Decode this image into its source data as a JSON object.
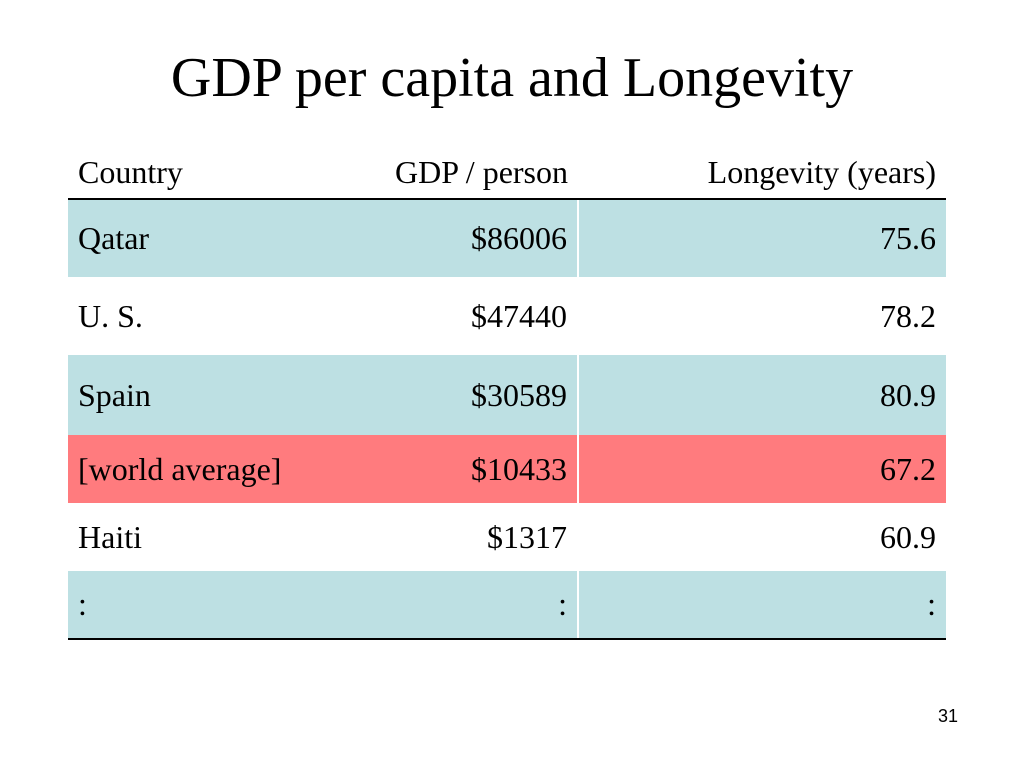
{
  "slide": {
    "title": "GDP per capita and Longevity",
    "page_number": "31"
  },
  "table": {
    "headers": [
      "Country",
      "GDP / person",
      "Longevity (years)"
    ],
    "rows": [
      {
        "country": "Qatar",
        "gdp": "$86006",
        "longevity": "75.6",
        "bg": "#bde0e3"
      },
      {
        "country": "U. S.",
        "gdp": "$47440",
        "longevity": "78.2",
        "bg": "#ffffff"
      },
      {
        "country": "Spain",
        "gdp": "$30589",
        "longevity": "80.9",
        "bg": "#bde0e3"
      },
      {
        "country": "[world average]",
        "gdp": "$10433",
        "longevity": "67.2",
        "bg": "#ff7b7e"
      },
      {
        "country": "Haiti",
        "gdp": "$1317",
        "longevity": "60.9",
        "bg": "#ffffff"
      },
      {
        "country": ":",
        "gdp": ":",
        "longevity": ":",
        "bg": "#bde0e3"
      }
    ]
  }
}
